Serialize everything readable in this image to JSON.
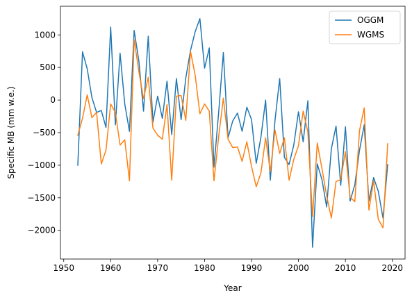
{
  "chart_data": {
    "type": "line",
    "xlabel": "Year",
    "ylabel": "Specific MB (mm w.e.)",
    "xlim": [
      1949.3,
      2022.7
    ],
    "ylim": [
      -2440,
      1440
    ],
    "xticks": [
      1950,
      1960,
      1970,
      1980,
      1990,
      2000,
      2010,
      2020
    ],
    "yticks": [
      -2000,
      -1500,
      -1000,
      -500,
      0,
      500,
      1000
    ],
    "ytick_labels": [
      "−2000",
      "−1500",
      "−1000",
      "−500",
      "0",
      "500",
      "1000"
    ],
    "grid": false,
    "legend_position": "top-right",
    "x": [
      1953,
      1954,
      1955,
      1956,
      1957,
      1958,
      1959,
      1960,
      1961,
      1962,
      1963,
      1964,
      1965,
      1966,
      1967,
      1968,
      1969,
      1970,
      1971,
      1972,
      1973,
      1974,
      1975,
      1976,
      1977,
      1978,
      1979,
      1980,
      1981,
      1982,
      1983,
      1984,
      1985,
      1986,
      1987,
      1988,
      1989,
      1990,
      1991,
      1992,
      1993,
      1994,
      1995,
      1996,
      1997,
      1998,
      1999,
      2000,
      2001,
      2002,
      2003,
      2004,
      2005,
      2006,
      2007,
      2008,
      2009,
      2010,
      2011,
      2012,
      2013,
      2014,
      2015,
      2016,
      2017,
      2018,
      2019
    ],
    "series": [
      {
        "name": "OGGM",
        "color": "#1f77b4",
        "values": [
          -1000,
          740,
          480,
          40,
          -190,
          -160,
          -420,
          1120,
          -380,
          720,
          -60,
          -480,
          1070,
          600,
          -170,
          980,
          -340,
          60,
          -280,
          290,
          -530,
          330,
          -300,
          340,
          760,
          1050,
          1250,
          490,
          800,
          -1030,
          -190,
          730,
          -580,
          -320,
          -200,
          -480,
          -110,
          -300,
          -970,
          -570,
          0,
          -1230,
          -310,
          330,
          -880,
          -990,
          -690,
          -180,
          -640,
          -10,
          -2260,
          -980,
          -1220,
          -1640,
          -750,
          -400,
          -1310,
          -410,
          -1550,
          -1300,
          -770,
          -380,
          -1550,
          -1190,
          -1400,
          -1810,
          -990
        ]
      },
      {
        "name": "WGMS",
        "color": "#ff7f0e",
        "values": [
          -540,
          -280,
          80,
          -270,
          -190,
          -980,
          -770,
          -60,
          -190,
          -690,
          -610,
          -1240,
          930,
          440,
          20,
          350,
          -430,
          -540,
          -600,
          -70,
          -1230,
          60,
          70,
          -310,
          750,
          380,
          -210,
          -60,
          -170,
          -1240,
          -560,
          30,
          -600,
          -730,
          -720,
          -940,
          -640,
          -1020,
          -1330,
          -1120,
          -580,
          -1100,
          -460,
          -820,
          -580,
          -1230,
          -910,
          -700,
          -170,
          -490,
          -1790,
          -660,
          -1050,
          -1470,
          -1810,
          -1250,
          -1220,
          -790,
          -1490,
          -1560,
          -470,
          -120,
          -1690,
          -1240,
          -1830,
          -1960,
          -670
        ]
      }
    ]
  }
}
